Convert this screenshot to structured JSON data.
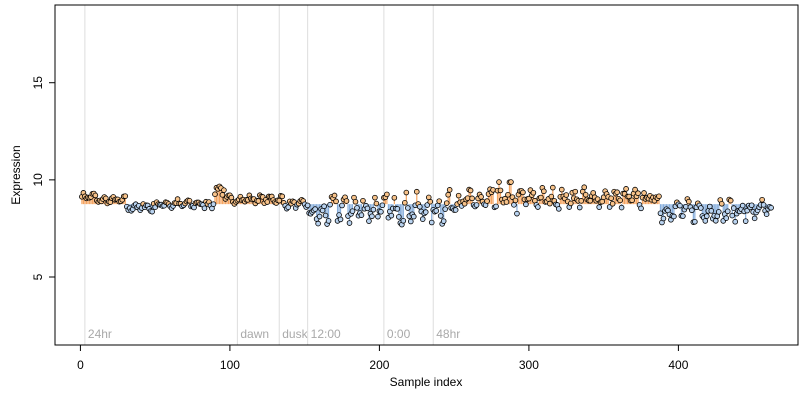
{
  "chart_data": {
    "type": "scatter",
    "xlabel": "Sample index",
    "ylabel": "Expression",
    "xlim": [
      -17,
      480
    ],
    "ylim": [
      1.5,
      19
    ],
    "xticks": [
      0,
      100,
      200,
      300,
      400
    ],
    "yticks": [
      5,
      10,
      15
    ],
    "baseline": 8.75,
    "grid": false,
    "vertical_markers": [
      {
        "x": 3,
        "label": "24hr"
      },
      {
        "x": 105,
        "label": "dawn"
      },
      {
        "x": 133,
        "label": "dusk"
      },
      {
        "x": 152,
        "label": "12:00"
      },
      {
        "x": 203,
        "label": "0:00"
      },
      {
        "x": 236,
        "label": "48hr"
      }
    ],
    "colors": {
      "above_baseline": "#f4a460",
      "below_baseline": "#87aedc",
      "marker_line": "#dddddd",
      "marker_text": "#a9a9a9",
      "point_edge": "#000000"
    },
    "segments": [
      {
        "x_start": 1,
        "x_end": 10,
        "mean": 9.15,
        "amplitude": 0.1
      },
      {
        "x_start": 11,
        "x_end": 30,
        "mean": 8.95,
        "amplitude": 0.12
      },
      {
        "x_start": 31,
        "x_end": 50,
        "mean": 8.6,
        "amplitude": 0.18
      },
      {
        "x_start": 51,
        "x_end": 89,
        "mean": 8.75,
        "amplitude": 0.15
      },
      {
        "x_start": 90,
        "x_end": 96,
        "mean": 9.5,
        "amplitude": 0.2
      },
      {
        "x_start": 97,
        "x_end": 135,
        "mean": 9.0,
        "amplitude": 0.12
      },
      {
        "x_start": 136,
        "x_end": 152,
        "mean": 8.75,
        "amplitude": 0.12
      },
      {
        "x_start": 153,
        "x_end": 165,
        "mean": 8.2,
        "amplitude": 0.35
      },
      {
        "x_start": 166,
        "x_end": 245,
        "mean": 8.5,
        "amplitude": 0.45
      },
      {
        "x_start": 246,
        "x_end": 275,
        "mean": 8.9,
        "amplitude": 0.35
      },
      {
        "x_start": 276,
        "x_end": 292,
        "mean": 9.1,
        "amplitude": 0.5
      },
      {
        "x_start": 293,
        "x_end": 387,
        "mean": 9.05,
        "amplitude": 0.3
      },
      {
        "x_start": 388,
        "x_end": 462,
        "mean": 8.4,
        "amplitude": 0.35
      }
    ]
  }
}
